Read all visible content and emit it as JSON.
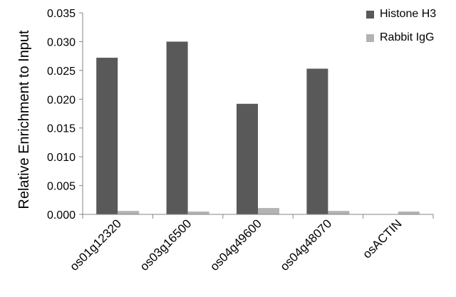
{
  "chart_data": {
    "type": "bar",
    "title": "",
    "xlabel": "",
    "ylabel": "Relative Enrichment to Input",
    "categories": [
      "os01g12320",
      "os03g16500",
      "os04g49600",
      "os04g48070",
      "osACTIN"
    ],
    "series": [
      {
        "name": "Histone H3",
        "color": "#595959",
        "values": [
          0.0272,
          0.03,
          0.0192,
          0.0253,
          0.0
        ]
      },
      {
        "name": "Rabbit IgG",
        "color": "#b3b3b3",
        "values": [
          0.0006,
          0.0005,
          0.0011,
          0.0006,
          0.0005
        ]
      }
    ],
    "ylim": [
      0,
      0.035
    ],
    "yticks": [
      "0.000",
      "0.005",
      "0.010",
      "0.015",
      "0.020",
      "0.025",
      "0.030",
      "0.035"
    ],
    "grid": false,
    "legend": "top-right"
  }
}
